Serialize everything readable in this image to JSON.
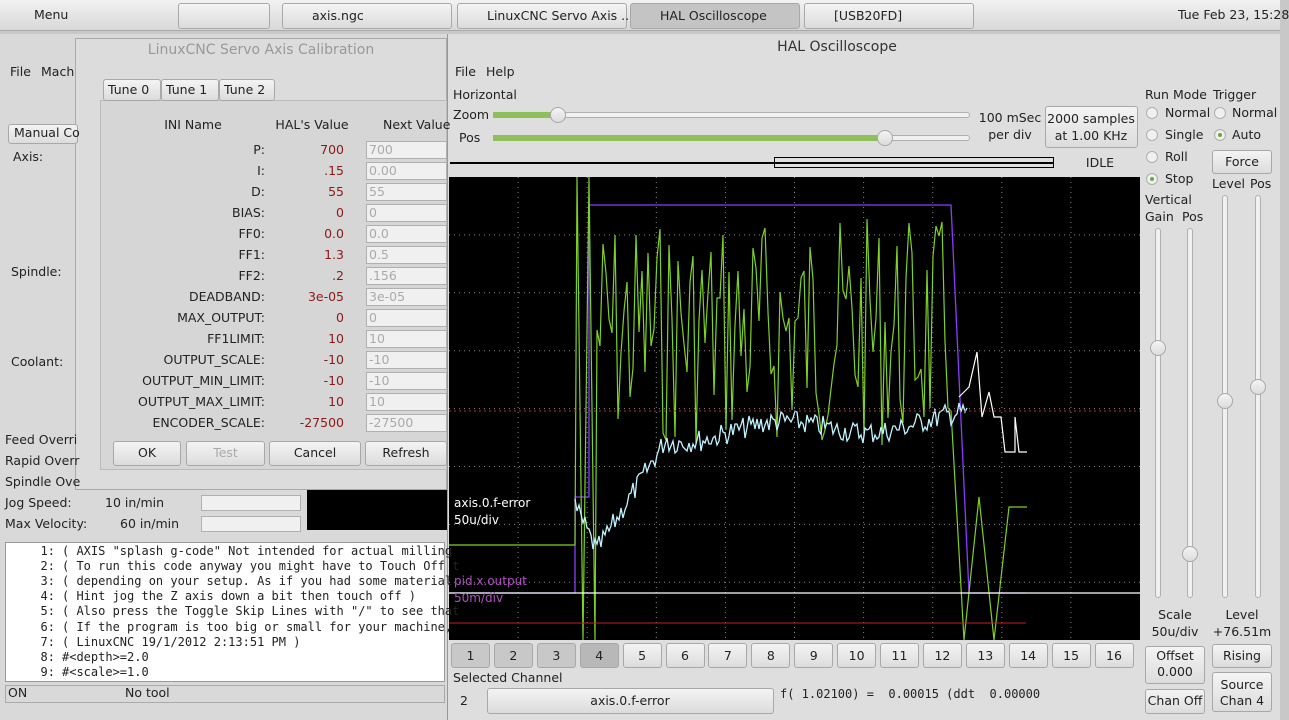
{
  "taskbar": {
    "menu": "Menu",
    "tasks": [
      "axis.ngc",
      "LinuxCNC Servo Axis ...",
      "HAL Oscilloscope",
      "[USB20FD]"
    ],
    "clock": "Tue Feb 23, 15:28"
  },
  "axis_window": {
    "menus": [
      "File",
      "Mach"
    ],
    "tab": "Manual Co",
    "labels": [
      "Axis:",
      "Spindle:",
      "Coolant:"
    ],
    "overrides": [
      "Feed Overri",
      "Rapid Overr",
      "Spindle Ove"
    ],
    "jog_speed": {
      "label": "Jog Speed:",
      "value": "10 in/min"
    },
    "max_velocity": {
      "label": "Max Velocity:",
      "value": "60 in/min"
    },
    "code": [
      {
        "n": "1:",
        "text": "( AXIS \"splash g-code\" Not intended for actual milling"
      },
      {
        "n": "2:",
        "text": "( To run this code anyway you might have to Touch Off t"
      },
      {
        "n": "3:",
        "text": "( depending on your setup. As if you had some material"
      },
      {
        "n": "4:",
        "text": "( Hint jog the Z axis down a bit then touch off )"
      },
      {
        "n": "5:",
        "text": "( Also press the Toggle Skip Lines with \"/\" to see that"
      },
      {
        "n": "6:",
        "text": "( If the program is too big or small for your machine,"
      },
      {
        "n": "7:",
        "text": "( LinuxCNC 19/1/2012 2:13:51 PM )"
      },
      {
        "n": "8:",
        "text": "#<depth>=2.0"
      },
      {
        "n": "9:",
        "text": "#<scale>=1.0"
      }
    ],
    "status": {
      "state": "ON",
      "tool": "No tool"
    }
  },
  "calibration": {
    "title": "LinuxCNC Servo Axis Calibration",
    "tabs": [
      "Tune 0",
      "Tune 1",
      "Tune 2"
    ],
    "headers": [
      "INI Name",
      "HAL's Value",
      "Next Value"
    ],
    "rows": [
      [
        "P:",
        "700",
        "700"
      ],
      [
        "I:",
        ".15",
        "0.00"
      ],
      [
        "D:",
        "55",
        "55"
      ],
      [
        "BIAS:",
        "0",
        "0"
      ],
      [
        "FF0:",
        "0.0",
        "0.0"
      ],
      [
        "FF1:",
        "1.3",
        "0.5"
      ],
      [
        "FF2:",
        ".2",
        ".156"
      ],
      [
        "DEADBAND:",
        "3e-05",
        "3e-05"
      ],
      [
        "MAX_OUTPUT:",
        "0",
        "0"
      ],
      [
        "FF1LIMIT:",
        "10",
        "10"
      ],
      [
        "OUTPUT_SCALE:",
        "-10",
        "-10"
      ],
      [
        "OUTPUT_MIN_LIMIT:",
        "-10",
        "-10"
      ],
      [
        "OUTPUT_MAX_LIMIT:",
        "10",
        "10"
      ],
      [
        "ENCODER_SCALE:",
        "-27500",
        "-27500"
      ]
    ],
    "buttons": [
      "OK",
      "Test",
      "Cancel",
      "Refresh"
    ]
  },
  "scope": {
    "title": "HAL Oscilloscope",
    "menus": [
      "File",
      "Help"
    ],
    "horizontal": "Horizontal",
    "zoom": "Zoom",
    "pos": "Pos",
    "rate": [
      "100 mSec",
      "per div"
    ],
    "samples": [
      "2000 samples",
      "at 1.00 KHz"
    ],
    "state": "IDLE",
    "run_mode": {
      "label": "Run Mode",
      "options": [
        "Normal",
        "Single",
        "Roll",
        "Stop"
      ]
    },
    "trigger": {
      "label": "Trigger",
      "options": [
        "Normal",
        "Auto"
      ],
      "force": "Force",
      "level": "Level",
      "pos": "Pos"
    },
    "vertical": {
      "label": "Vertical",
      "gain": "Gain",
      "pos": "Pos"
    },
    "scale": {
      "label": "Scale",
      "value": "50u/div"
    },
    "level": {
      "label": "Level",
      "value": "+76.51m"
    },
    "offset": {
      "label": "Offset",
      "value": "0.000"
    },
    "rising": "Rising",
    "source": [
      "Source",
      "Chan 4"
    ],
    "chan_off": "Chan Off",
    "channels": [
      "1",
      "2",
      "3",
      "4",
      "5",
      "6",
      "7",
      "8",
      "9",
      "10",
      "11",
      "12",
      "13",
      "14",
      "15",
      "16"
    ],
    "traces": [
      {
        "name": "axis.0.f-error",
        "scale": "50u/div"
      },
      {
        "name": "pid.x.output",
        "scale": "50m/div"
      }
    ],
    "selected": {
      "label": "Selected Channel",
      "number": "2",
      "name": "axis.0.f-error"
    },
    "readout": "f( 1.02100) =  0.00015 (ddt  0.00000"
  }
}
